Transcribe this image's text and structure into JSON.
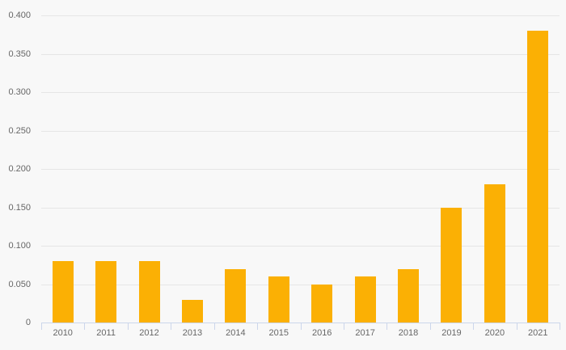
{
  "chart_data": {
    "type": "bar",
    "title": "",
    "xlabel": "",
    "ylabel": "",
    "categories": [
      "2010",
      "2011",
      "2012",
      "2013",
      "2014",
      "2015",
      "2016",
      "2017",
      "2018",
      "2019",
      "2020",
      "2021"
    ],
    "values": [
      0.08,
      0.08,
      0.08,
      0.03,
      0.07,
      0.06,
      0.05,
      0.06,
      0.07,
      0.15,
      0.18,
      0.38
    ],
    "ylim": [
      0,
      0.4
    ],
    "ytick_interval": 0.05,
    "ytick_labels": [
      "0",
      "0.050",
      "0.100",
      "0.150",
      "0.200",
      "0.250",
      "0.300",
      "0.350",
      "0.400"
    ],
    "grid": true,
    "legend": false,
    "colors": {
      "bar": "#fbb004",
      "gridline": "#e6e6e6",
      "axis_line": "#ccd6eb",
      "label": "#666666",
      "background": "#f8f8f8"
    }
  }
}
